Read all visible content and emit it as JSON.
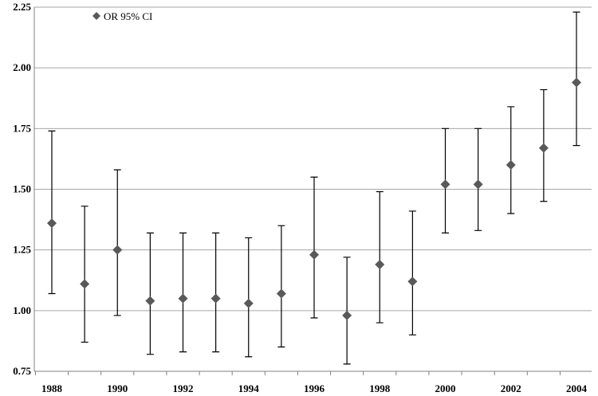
{
  "chart_data": {
    "type": "scatter",
    "legend": {
      "label": "OR 95% CI",
      "position": "top-left"
    },
    "ylim": [
      0.75,
      2.25
    ],
    "yticks": [
      "0.75",
      "1.00",
      "1.25",
      "1.50",
      "1.75",
      "2.00",
      "2.25"
    ],
    "xticks": [
      "1988",
      "1990",
      "1992",
      "1994",
      "1996",
      "1998",
      "2000",
      "2002",
      "2004"
    ],
    "grid": "horizontal",
    "marker_color": "#595959",
    "series": [
      {
        "name": "OR 95% CI",
        "points": [
          {
            "x": 1988,
            "y": 1.36,
            "low": 1.07,
            "high": 1.74
          },
          {
            "x": 1989,
            "y": 1.11,
            "low": 0.87,
            "high": 1.43
          },
          {
            "x": 1990,
            "y": 1.25,
            "low": 0.98,
            "high": 1.58
          },
          {
            "x": 1991,
            "y": 1.04,
            "low": 0.82,
            "high": 1.32
          },
          {
            "x": 1992,
            "y": 1.05,
            "low": 0.83,
            "high": 1.32
          },
          {
            "x": 1993,
            "y": 1.05,
            "low": 0.83,
            "high": 1.32
          },
          {
            "x": 1994,
            "y": 1.03,
            "low": 0.81,
            "high": 1.3
          },
          {
            "x": 1995,
            "y": 1.07,
            "low": 0.85,
            "high": 1.35
          },
          {
            "x": 1996,
            "y": 1.23,
            "low": 0.97,
            "high": 1.55
          },
          {
            "x": 1997,
            "y": 0.98,
            "low": 0.78,
            "high": 1.22
          },
          {
            "x": 1998,
            "y": 1.19,
            "low": 0.95,
            "high": 1.49
          },
          {
            "x": 1999,
            "y": 1.12,
            "low": 0.9,
            "high": 1.41
          },
          {
            "x": 2000,
            "y": 1.52,
            "low": 1.32,
            "high": 1.75
          },
          {
            "x": 2001,
            "y": 1.52,
            "low": 1.33,
            "high": 1.75
          },
          {
            "x": 2002,
            "y": 1.6,
            "low": 1.4,
            "high": 1.84
          },
          {
            "x": 2003,
            "y": 1.67,
            "low": 1.45,
            "high": 1.91
          },
          {
            "x": 2004,
            "y": 1.94,
            "low": 1.68,
            "high": 2.23
          }
        ]
      }
    ]
  }
}
